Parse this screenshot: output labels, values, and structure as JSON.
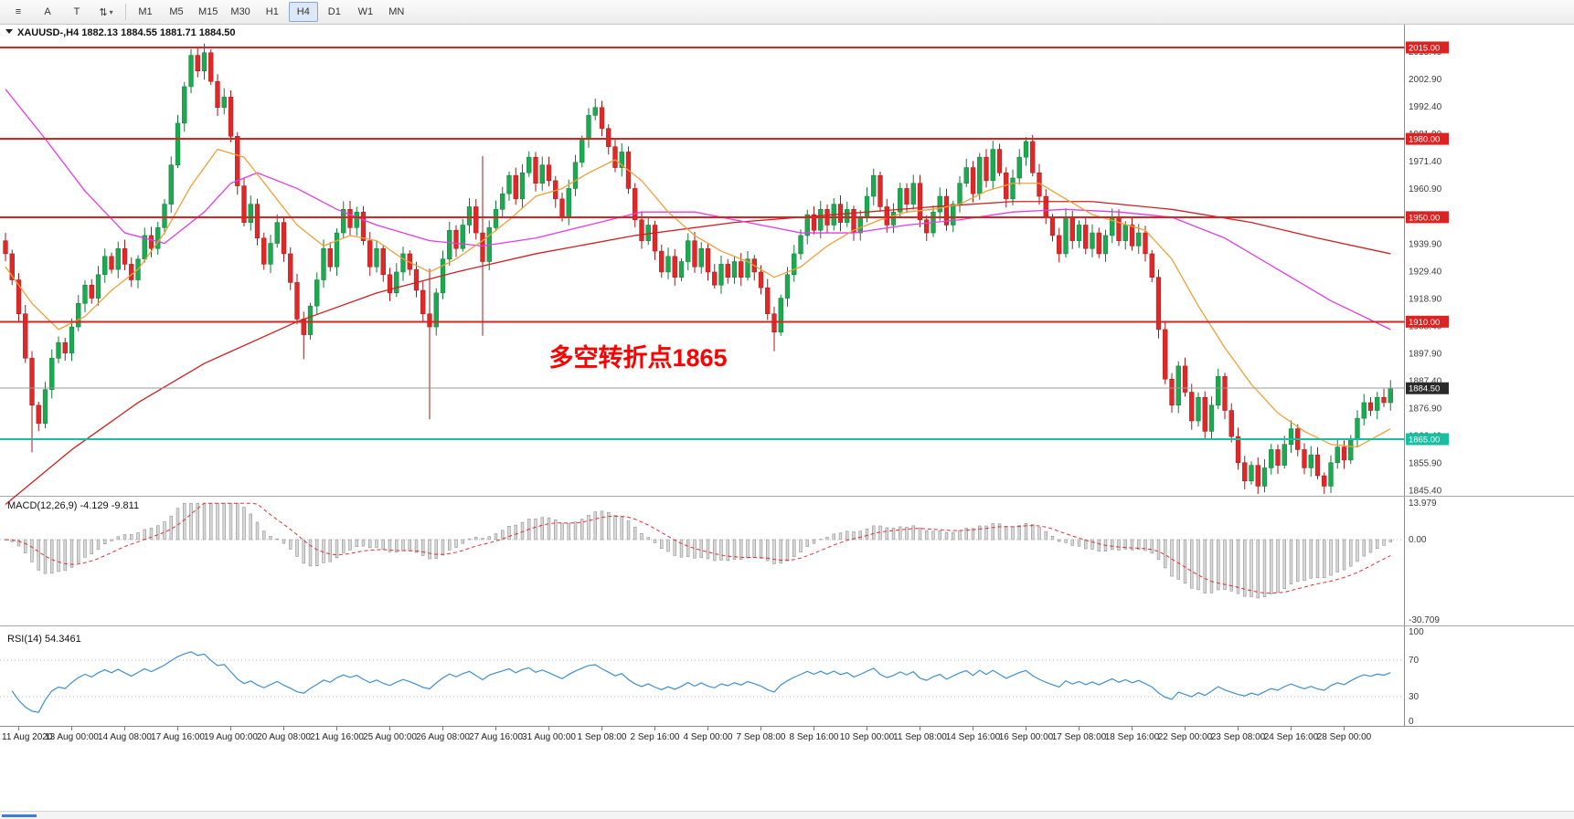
{
  "toolbar": {
    "menu_icon": "≡",
    "text_tool": "A",
    "label_tool": "T",
    "objects_icon": "⇅",
    "dropdown_caret": "▾",
    "timeframes": [
      "M1",
      "M5",
      "M15",
      "M30",
      "H1",
      "H4",
      "D1",
      "W1",
      "MN"
    ],
    "active_timeframe": "H4"
  },
  "chart_header": {
    "symbol": "XAUUSD-,H4",
    "open": "1882.13",
    "high": "1884.55",
    "low": "1881.71",
    "close": "1884.50"
  },
  "chart_data": {
    "type": "candlestick",
    "title": "XAUUSD H4",
    "x_labels": [
      "11 Aug 2020",
      "13 Aug 00:00",
      "14 Aug 08:00",
      "17 Aug 16:00",
      "19 Aug 00:00",
      "20 Aug 08:00",
      "21 Aug 16:00",
      "25 Aug 00:00",
      "26 Aug 08:00",
      "27 Aug 16:00",
      "31 Aug 00:00",
      "1 Sep 08:00",
      "2 Sep 16:00",
      "4 Sep 00:00",
      "7 Sep 08:00",
      "8 Sep 16:00",
      "10 Sep 00:00",
      "11 Sep 08:00",
      "14 Sep 16:00",
      "16 Sep 00:00",
      "17 Sep 08:00",
      "18 Sep 16:00",
      "22 Sep 00:00",
      "23 Sep 08:00",
      "24 Sep 16:00",
      "28 Sep 00:00"
    ],
    "x_label_first_bar": 2,
    "x_label_step_bars": 8,
    "y_axis_labels": [
      "1845.40",
      "1855.90",
      "1866.40",
      "1876.90",
      "1887.40",
      "1897.90",
      "1908.40",
      "1918.90",
      "1929.40",
      "1939.90",
      "1950.40",
      "1960.90",
      "1971.40",
      "1981.90",
      "1992.40",
      "2002.90",
      "2013.40"
    ],
    "y_range": [
      1845.4,
      2015.0
    ],
    "candles": {
      "first_open": 1941,
      "closes": [
        1936,
        1926,
        1913,
        1896,
        1878,
        1871,
        1884,
        1896,
        1902,
        1898,
        1908,
        1917,
        1924,
        1919,
        1928,
        1935,
        1930,
        1938,
        1932,
        1926,
        1934,
        1943,
        1938,
        1946,
        1955,
        1970,
        1986,
        2000,
        2012,
        2006,
        2013,
        2002,
        1992,
        1996,
        1981,
        1962,
        1948,
        1955,
        1942,
        1932,
        1940,
        1948,
        1936,
        1925,
        1911,
        1905,
        1916,
        1926,
        1938,
        1931,
        1944,
        1953,
        1946,
        1952,
        1941,
        1931,
        1938,
        1928,
        1921,
        1929,
        1936,
        1930,
        1922,
        1913,
        1908,
        1921,
        1934,
        1945,
        1938,
        1947,
        1954,
        1944,
        1933,
        1946,
        1953,
        1959,
        1966,
        1957,
        1967,
        1973,
        1963,
        1970,
        1964,
        1957,
        1950,
        1961,
        1971,
        1980,
        1989,
        1992,
        1984,
        1977,
        1969,
        1975,
        1961,
        1949,
        1941,
        1947,
        1937,
        1929,
        1935,
        1927,
        1933,
        1941,
        1931,
        1938,
        1929,
        1924,
        1932,
        1927,
        1933,
        1927,
        1934,
        1929,
        1923,
        1913,
        1906,
        1919,
        1928,
        1936,
        1943,
        1951,
        1945,
        1953,
        1947,
        1955,
        1948,
        1953,
        1944,
        1950,
        1958,
        1966,
        1954,
        1947,
        1952,
        1961,
        1955,
        1963,
        1949,
        1944,
        1952,
        1958,
        1947,
        1955,
        1963,
        1969,
        1959,
        1973,
        1964,
        1976,
        1967,
        1957,
        1965,
        1973,
        1979,
        1967,
        1958,
        1950,
        1943,
        1936,
        1950,
        1941,
        1947,
        1938,
        1944,
        1936,
        1943,
        1950,
        1941,
        1947,
        1939,
        1944,
        1936,
        1927,
        1907,
        1888,
        1878,
        1893,
        1883,
        1872,
        1881,
        1868,
        1878,
        1889,
        1876,
        1866,
        1856,
        1849,
        1855,
        1847,
        1854,
        1861,
        1855,
        1863,
        1869,
        1861,
        1854,
        1859,
        1851,
        1847,
        1856,
        1862,
        1857,
        1865,
        1873,
        1879,
        1876,
        1881,
        1879,
        1884.5
      ],
      "long_wicks_low": {
        "4": 15,
        "45": 6,
        "64": 34,
        "72": 26,
        "116": 4,
        "199": 4
      },
      "long_wicks_high": {
        "30": 2,
        "64": 15,
        "72": 28
      }
    },
    "colors": {
      "up": "#1caa50",
      "down": "#e02828",
      "up_edge": "#0e7a36",
      "down_edge": "#a01818"
    },
    "ma_lines": [
      {
        "name": "ma-slow",
        "color": "#d02020",
        "points": [
          [
            0,
            1840
          ],
          [
            10,
            1861
          ],
          [
            20,
            1879
          ],
          [
            30,
            1894
          ],
          [
            44,
            1910
          ],
          [
            56,
            1921
          ],
          [
            68,
            1929
          ],
          [
            80,
            1936
          ],
          [
            95,
            1943
          ],
          [
            110,
            1948
          ],
          [
            125,
            1951
          ],
          [
            140,
            1954
          ],
          [
            152,
            1956
          ],
          [
            164,
            1956
          ],
          [
            176,
            1953
          ],
          [
            188,
            1948
          ],
          [
            198,
            1942
          ],
          [
            209,
            1936
          ]
        ]
      },
      {
        "name": "ma-mid",
        "color": "#e43ce4",
        "points": [
          [
            0,
            1999
          ],
          [
            6,
            1980
          ],
          [
            12,
            1960
          ],
          [
            18,
            1944
          ],
          [
            24,
            1940
          ],
          [
            30,
            1952
          ],
          [
            34,
            1963
          ],
          [
            38,
            1967
          ],
          [
            44,
            1961
          ],
          [
            50,
            1953
          ],
          [
            56,
            1947
          ],
          [
            64,
            1941
          ],
          [
            72,
            1939
          ],
          [
            80,
            1942
          ],
          [
            88,
            1947
          ],
          [
            96,
            1952
          ],
          [
            104,
            1952
          ],
          [
            112,
            1948
          ],
          [
            120,
            1944
          ],
          [
            128,
            1944
          ],
          [
            136,
            1947
          ],
          [
            144,
            1949
          ],
          [
            152,
            1952
          ],
          [
            160,
            1953
          ],
          [
            168,
            1952
          ],
          [
            176,
            1950
          ],
          [
            184,
            1942
          ],
          [
            192,
            1930
          ],
          [
            200,
            1918
          ],
          [
            209,
            1907
          ]
        ]
      },
      {
        "name": "ma-fast",
        "color": "#f0a038",
        "points": [
          [
            0,
            1931
          ],
          [
            4,
            1917
          ],
          [
            8,
            1907
          ],
          [
            12,
            1912
          ],
          [
            16,
            1922
          ],
          [
            20,
            1930
          ],
          [
            24,
            1944
          ],
          [
            28,
            1962
          ],
          [
            32,
            1976
          ],
          [
            36,
            1973
          ],
          [
            40,
            1960
          ],
          [
            44,
            1947
          ],
          [
            48,
            1939
          ],
          [
            52,
            1943
          ],
          [
            56,
            1941
          ],
          [
            60,
            1934
          ],
          [
            64,
            1929
          ],
          [
            68,
            1934
          ],
          [
            72,
            1941
          ],
          [
            76,
            1949
          ],
          [
            80,
            1958
          ],
          [
            84,
            1961
          ],
          [
            88,
            1967
          ],
          [
            92,
            1972
          ],
          [
            96,
            1964
          ],
          [
            100,
            1952
          ],
          [
            104,
            1943
          ],
          [
            108,
            1937
          ],
          [
            112,
            1933
          ],
          [
            116,
            1927
          ],
          [
            120,
            1931
          ],
          [
            124,
            1939
          ],
          [
            128,
            1945
          ],
          [
            132,
            1949
          ],
          [
            136,
            1952
          ],
          [
            140,
            1953
          ],
          [
            144,
            1955
          ],
          [
            148,
            1960
          ],
          [
            152,
            1963
          ],
          [
            156,
            1963
          ],
          [
            160,
            1957
          ],
          [
            164,
            1951
          ],
          [
            168,
            1948
          ],
          [
            172,
            1945
          ],
          [
            176,
            1934
          ],
          [
            180,
            1916
          ],
          [
            184,
            1900
          ],
          [
            188,
            1886
          ],
          [
            192,
            1875
          ],
          [
            196,
            1868
          ],
          [
            200,
            1863
          ],
          [
            204,
            1862
          ],
          [
            209,
            1869
          ]
        ]
      }
    ],
    "levels": [
      {
        "price": 2015.0,
        "label": "2015.00",
        "color": "#dd2222"
      },
      {
        "price": 1980.0,
        "label": "1980.00",
        "color": "#dd2222"
      },
      {
        "price": 1950.0,
        "label": "1950.00",
        "color": "#dd2222"
      },
      {
        "price": 1910.0,
        "label": "1910.00",
        "color": "#dd2222"
      },
      {
        "price": 1865.0,
        "label": "1865.00",
        "color": "#17bfa0"
      }
    ],
    "current_price": {
      "price": 1884.5,
      "label": "1884.50",
      "color": "#2a2a2a"
    },
    "annotation": {
      "text": "多空转折点1865",
      "color": "#ff0000",
      "bar": 82,
      "price": 1893
    },
    "macd": {
      "label": "MACD(12,26,9)",
      "values": "-4.129 -9.811",
      "fast": 12,
      "slow": 26,
      "signal_period": 9,
      "axis_max": 13.979,
      "axis_min": -30.709,
      "axis_labels": [
        "13.979",
        "0.00",
        "-30.709"
      ],
      "histogram_color": "#d9d9d9",
      "signal_color": "#e03030"
    },
    "rsi": {
      "label": "RSI(14)",
      "value": "54.3461",
      "period": 14,
      "axis_labels": [
        "100",
        "70",
        "30",
        "0"
      ],
      "levels": [
        70,
        30
      ],
      "color": "#3f8fd0"
    }
  }
}
